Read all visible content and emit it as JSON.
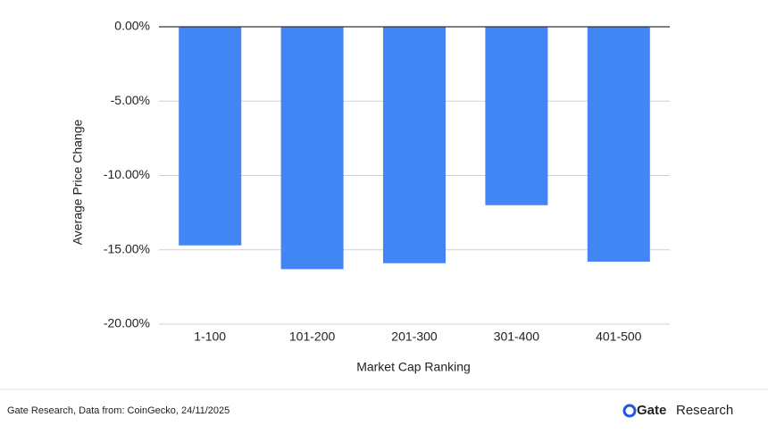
{
  "chart_data": {
    "type": "bar",
    "x_label": "Market Cap Ranking",
    "y_label": "Average Price Change",
    "categories": [
      "1-100",
      "101-200",
      "201-300",
      "301-400",
      "401-500"
    ],
    "values": [
      -14.7,
      -16.3,
      -15.9,
      -12.0,
      -15.8
    ],
    "color": "#4285f4",
    "ylim": [
      -20,
      0
    ],
    "yticks": [
      {
        "value": 0,
        "label": "0.00%"
      },
      {
        "value": -5,
        "label": "-5.00%"
      },
      {
        "value": -10,
        "label": "-10.00%"
      },
      {
        "value": -15,
        "label": "-15.00%"
      },
      {
        "value": -20,
        "label": "-20.00%"
      }
    ],
    "grid": true
  },
  "footer": {
    "source": "Gate Research, Data from: CoinGecko, 24/11/2025",
    "logo_brand": "Gate",
    "logo_text": "Research"
  }
}
